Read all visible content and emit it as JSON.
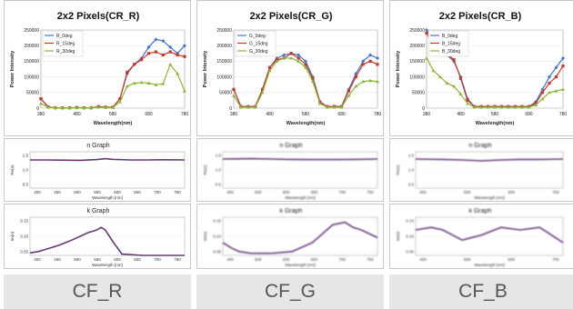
{
  "columns": [
    {
      "caption": "CF_R",
      "main": {
        "title": "2x2 Pixels(CR_R)",
        "xlabel": "Wavelength(nm)",
        "ylabel": "Power Intensity",
        "xticks": [
          "380",
          "480",
          "580",
          "680",
          "780"
        ],
        "yticks": [
          "0",
          "50000",
          "100000",
          "150000",
          "200000",
          "250000"
        ],
        "legend": [
          "R_0deg",
          "R_15deg",
          "R_30deg"
        ]
      },
      "n_graph": {
        "title": "n Graph",
        "ylabel": "Re(n)",
        "xlabel": "Wavelength [nm]",
        "xticks": [
          "400",
          "450",
          "500",
          "550",
          "600",
          "650",
          "700",
          "750"
        ],
        "yticks": [
          "1.5",
          "1.0",
          "0.5"
        ]
      },
      "k_graph": {
        "title": "k Graph",
        "ylabel": "Im(n)",
        "xlabel": "Wavelength [nm]",
        "xticks": [
          "400",
          "450",
          "500",
          "550",
          "600",
          "650",
          "700",
          "750"
        ],
        "yticks": [
          "0.15",
          "0.10",
          "0.05"
        ]
      }
    },
    {
      "caption": "CF_G",
      "main": {
        "title": "2x2 Pixels(CR_G)",
        "xlabel": "Wavelength(nm)",
        "ylabel": "Power Intensity",
        "xticks": [
          "380",
          "480",
          "580",
          "680",
          "780"
        ],
        "yticks": [
          "0",
          "50000",
          "100000",
          "150000",
          "200000",
          "250000"
        ],
        "legend": [
          "G_0deg",
          "G_15deg",
          "G_30deg"
        ]
      },
      "n_graph": {
        "title": "n Graph",
        "ylabel": "Re(n)",
        "xlabel": "Wavelength [nm]",
        "xticks": [
          "400",
          "500",
          "600",
          "650",
          "700",
          "750"
        ],
        "yticks": [
          "1.5",
          "1.0",
          "0.5"
        ]
      },
      "k_graph": {
        "title": "k Graph",
        "ylabel": "Im(n)",
        "xlabel": "Wavelength [nm]",
        "xticks": [
          "400",
          "500",
          "600",
          "650",
          "700",
          "750"
        ],
        "yticks": [
          "0.15",
          "0.10",
          "0.05"
        ]
      }
    },
    {
      "caption": "CF_B",
      "main": {
        "title": "2x2 Pixels(CR_B)",
        "xlabel": "Wavelength(nm)",
        "ylabel": "Power Intensity",
        "xticks": [
          "380",
          "480",
          "580",
          "680",
          "780"
        ],
        "yticks": [
          "0",
          "50000",
          "100000",
          "150000",
          "200000",
          "250000"
        ],
        "legend": [
          "B_0deg",
          "B_15deg",
          "B_30deg"
        ]
      },
      "n_graph": {
        "title": "n Graph",
        "ylabel": "Re(n)",
        "xlabel": "Wavelength [nm]",
        "xticks": [
          "400",
          "500",
          "600",
          "700"
        ],
        "yticks": [
          "1.5",
          "1.0",
          "0.5"
        ]
      },
      "k_graph": {
        "title": "k Graph",
        "ylabel": "Im(n)",
        "xlabel": "Wavelength [nm]",
        "xticks": [
          "400",
          "500",
          "600",
          "700"
        ],
        "yticks": [
          "0.15",
          "0.10",
          "0.05"
        ]
      }
    }
  ],
  "colors": {
    "s0": "#4472c4",
    "s15": "#c0392b",
    "s30": "#8db33a",
    "nk": "#7b2d5a",
    "nk_blue": "#3a5bbf"
  },
  "chart_data": [
    {
      "type": "line",
      "title": "2x2 Pixels(CR_R)",
      "xlabel": "Wavelength(nm)",
      "ylabel": "Power Intensity",
      "xlim": [
        380,
        780
      ],
      "ylim": [
        0,
        250000
      ],
      "x": [
        380,
        400,
        420,
        440,
        460,
        480,
        500,
        520,
        540,
        560,
        580,
        600,
        620,
        640,
        660,
        680,
        700,
        720,
        740,
        760,
        780
      ],
      "series": [
        {
          "name": "R_0deg",
          "values": [
            30000,
            4000,
            1000,
            1000,
            1000,
            2000,
            1000,
            1000,
            5000,
            3000,
            3000,
            30000,
            110000,
            140000,
            160000,
            195000,
            220000,
            215000,
            195000,
            175000,
            200000
          ]
        },
        {
          "name": "R_15deg",
          "values": [
            30000,
            4000,
            1000,
            1000,
            1000,
            2000,
            1000,
            1000,
            5000,
            3000,
            3000,
            30000,
            115000,
            140000,
            155000,
            175000,
            180000,
            170000,
            180000,
            170000,
            165000
          ]
        },
        {
          "name": "R_30deg",
          "values": [
            15000,
            3000,
            1000,
            1000,
            1000,
            1000,
            1000,
            1000,
            3000,
            2000,
            2000,
            20000,
            70000,
            80000,
            82000,
            80000,
            75000,
            78000,
            140000,
            110000,
            55000
          ]
        }
      ]
    },
    {
      "type": "line",
      "title": "2x2 Pixels(CR_G)",
      "xlabel": "Wavelength(nm)",
      "ylabel": "Power Intensity",
      "xlim": [
        380,
        780
      ],
      "ylim": [
        0,
        250000
      ],
      "x": [
        380,
        400,
        420,
        440,
        460,
        480,
        500,
        520,
        540,
        560,
        580,
        600,
        620,
        640,
        660,
        680,
        700,
        720,
        740,
        760,
        780
      ],
      "series": [
        {
          "name": "G_0deg",
          "values": [
            60000,
            5000,
            5000,
            5000,
            60000,
            130000,
            160000,
            170000,
            175000,
            170000,
            150000,
            100000,
            20000,
            5000,
            5000,
            5000,
            60000,
            110000,
            150000,
            170000,
            160000
          ]
        },
        {
          "name": "G_15deg",
          "values": [
            60000,
            5000,
            5000,
            5000,
            60000,
            130000,
            155000,
            160000,
            175000,
            160000,
            140000,
            95000,
            20000,
            5000,
            5000,
            5000,
            55000,
            100000,
            140000,
            150000,
            140000
          ]
        },
        {
          "name": "G_30deg",
          "values": [
            40000,
            3000,
            3000,
            3000,
            50000,
            120000,
            150000,
            160000,
            160000,
            150000,
            130000,
            85000,
            15000,
            3000,
            3000,
            3000,
            40000,
            70000,
            85000,
            88000,
            85000
          ]
        }
      ]
    },
    {
      "type": "line",
      "title": "2x2 Pixels(CR_B)",
      "xlabel": "Wavelength(nm)",
      "ylabel": "Power Intensity",
      "xlim": [
        380,
        780
      ],
      "ylim": [
        0,
        250000
      ],
      "x": [
        380,
        400,
        420,
        440,
        460,
        480,
        500,
        520,
        540,
        560,
        580,
        600,
        620,
        640,
        660,
        680,
        700,
        720,
        740,
        760,
        780
      ],
      "series": [
        {
          "name": "B_0deg",
          "values": [
            250000,
            215000,
            195000,
            170000,
            150000,
            100000,
            30000,
            5000,
            5000,
            5000,
            5000,
            5000,
            5000,
            5000,
            5000,
            5000,
            20000,
            60000,
            100000,
            130000,
            160000
          ]
        },
        {
          "name": "B_15deg",
          "values": [
            240000,
            200000,
            180000,
            175000,
            155000,
            95000,
            25000,
            5000,
            5000,
            5000,
            5000,
            5000,
            5000,
            5000,
            5000,
            5000,
            15000,
            50000,
            80000,
            100000,
            135000
          ]
        },
        {
          "name": "B_30deg",
          "values": [
            160000,
            120000,
            100000,
            80000,
            70000,
            45000,
            15000,
            3000,
            3000,
            3000,
            3000,
            3000,
            3000,
            3000,
            3000,
            3000,
            10000,
            30000,
            50000,
            55000,
            60000
          ]
        }
      ]
    },
    {
      "type": "line",
      "title": "n Graph",
      "xlabel": "Wavelength [nm]",
      "ylabel": "Re(n)",
      "xlim": [
        380,
        750
      ],
      "ylim": [
        0,
        2
      ],
      "x": [
        380,
        420,
        460,
        500,
        540,
        560,
        580,
        620,
        660,
        700,
        750
      ],
      "series": [
        {
          "values": [
            1.55,
            1.55,
            1.54,
            1.53,
            1.57,
            1.62,
            1.58,
            1.55,
            1.55,
            1.56,
            1.55
          ]
        }
      ]
    },
    {
      "type": "line",
      "title": "k Graph",
      "xlabel": "Wavelength [nm]",
      "ylabel": "Im(n)",
      "xlim": [
        380,
        750
      ],
      "ylim": [
        0,
        0.15
      ],
      "x": [
        380,
        400,
        420,
        450,
        480,
        500,
        520,
        540,
        550,
        560,
        580,
        600,
        650,
        700,
        750
      ],
      "series": [
        {
          "values": [
            0.01,
            0.015,
            0.025,
            0.04,
            0.06,
            0.075,
            0.09,
            0.1,
            0.11,
            0.1,
            0.05,
            0.005,
            0.0,
            0.0,
            0.0
          ]
        }
      ]
    },
    {
      "type": "line",
      "title": "n Graph",
      "xlabel": "Wavelength [nm]",
      "ylabel": "Re(n)",
      "xlim": [
        380,
        760
      ],
      "ylim": [
        0,
        2
      ],
      "x": [
        380,
        450,
        500,
        550,
        600,
        650,
        700,
        760
      ],
      "series": [
        {
          "values": [
            1.6,
            1.62,
            1.6,
            1.58,
            1.57,
            1.57,
            1.58,
            1.6
          ]
        }
      ]
    },
    {
      "type": "line",
      "title": "k Graph",
      "xlabel": "Wavelength [nm]",
      "ylabel": "Im(n)",
      "xlim": [
        380,
        760
      ],
      "ylim": [
        0,
        0.15
      ],
      "x": [
        380,
        400,
        420,
        450,
        500,
        550,
        600,
        650,
        680,
        700,
        720,
        760
      ],
      "series": [
        {
          "values": [
            0.05,
            0.03,
            0.015,
            0.008,
            0.008,
            0.015,
            0.05,
            0.12,
            0.13,
            0.11,
            0.1,
            0.07
          ]
        }
      ]
    },
    {
      "type": "line",
      "title": "n Graph",
      "xlabel": "Wavelength [nm]",
      "ylabel": "Re(n)",
      "xlim": [
        380,
        760
      ],
      "ylim": [
        0,
        2
      ],
      "x": [
        380,
        450,
        500,
        550,
        600,
        650,
        700,
        760
      ],
      "series": [
        {
          "values": [
            1.6,
            1.58,
            1.55,
            1.5,
            1.55,
            1.58,
            1.58,
            1.6
          ]
        }
      ]
    },
    {
      "type": "line",
      "title": "k Graph",
      "xlabel": "Wavelength [nm]",
      "ylabel": "Im(n)",
      "xlim": [
        380,
        760
      ],
      "ylim": [
        0,
        0.15
      ],
      "x": [
        380,
        420,
        450,
        500,
        550,
        600,
        650,
        700,
        730,
        760
      ],
      "series": [
        {
          "values": [
            0.1,
            0.11,
            0.1,
            0.06,
            0.08,
            0.11,
            0.1,
            0.11,
            0.08,
            0.05
          ]
        }
      ]
    }
  ]
}
